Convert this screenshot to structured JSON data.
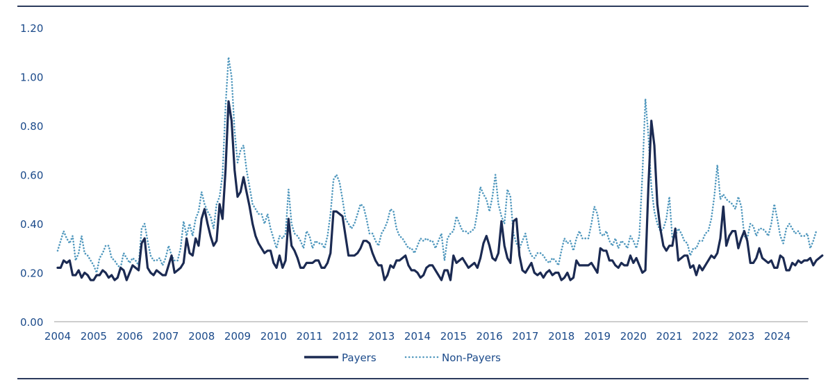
{
  "chart_data": {
    "type": "line",
    "title": "",
    "xlabel": "",
    "ylabel": "",
    "ylim": [
      0,
      1.2
    ],
    "xlim": [
      2004.0,
      2024.83
    ],
    "grid": false,
    "legend_position": "bottom-center",
    "y_ticks": [
      "0.00",
      "0.20",
      "0.40",
      "0.60",
      "0.80",
      "1.00",
      "1.20"
    ],
    "x_ticks": [
      "2004",
      "2005",
      "2006",
      "2007",
      "2008",
      "2009",
      "2010",
      "2011",
      "2012",
      "2013",
      "2014",
      "2015",
      "2016",
      "2017",
      "2018",
      "2019",
      "2020",
      "2021",
      "2022",
      "2023",
      "2024"
    ],
    "series": [
      {
        "name": "Payers",
        "style": "solid",
        "color": "#1b2a52",
        "start": "2004-01",
        "frequency": "monthly",
        "values": [
          0.22,
          0.22,
          0.25,
          0.24,
          0.25,
          0.19,
          0.19,
          0.21,
          0.18,
          0.2,
          0.19,
          0.17,
          0.17,
          0.19,
          0.19,
          0.21,
          0.2,
          0.18,
          0.19,
          0.17,
          0.18,
          0.22,
          0.21,
          0.17,
          0.2,
          0.23,
          0.22,
          0.21,
          0.32,
          0.34,
          0.22,
          0.2,
          0.19,
          0.21,
          0.2,
          0.19,
          0.19,
          0.23,
          0.27,
          0.2,
          0.21,
          0.22,
          0.24,
          0.34,
          0.28,
          0.27,
          0.34,
          0.31,
          0.42,
          0.46,
          0.4,
          0.35,
          0.31,
          0.33,
          0.48,
          0.42,
          0.62,
          0.9,
          0.82,
          0.62,
          0.51,
          0.53,
          0.59,
          0.53,
          0.47,
          0.4,
          0.35,
          0.32,
          0.3,
          0.28,
          0.29,
          0.29,
          0.24,
          0.22,
          0.27,
          0.22,
          0.25,
          0.42,
          0.31,
          0.29,
          0.26,
          0.22,
          0.22,
          0.24,
          0.24,
          0.24,
          0.25,
          0.25,
          0.22,
          0.22,
          0.24,
          0.28,
          0.45,
          0.45,
          0.44,
          0.43,
          0.35,
          0.27,
          0.27,
          0.27,
          0.28,
          0.3,
          0.33,
          0.33,
          0.32,
          0.28,
          0.25,
          0.23,
          0.23,
          0.17,
          0.19,
          0.23,
          0.22,
          0.25,
          0.25,
          0.26,
          0.27,
          0.23,
          0.21,
          0.21,
          0.2,
          0.18,
          0.19,
          0.22,
          0.23,
          0.23,
          0.21,
          0.19,
          0.17,
          0.21,
          0.21,
          0.17,
          0.27,
          0.24,
          0.25,
          0.26,
          0.24,
          0.22,
          0.23,
          0.24,
          0.22,
          0.26,
          0.32,
          0.35,
          0.31,
          0.26,
          0.25,
          0.28,
          0.41,
          0.31,
          0.26,
          0.24,
          0.41,
          0.42,
          0.27,
          0.21,
          0.2,
          0.22,
          0.24,
          0.2,
          0.19,
          0.2,
          0.18,
          0.2,
          0.21,
          0.19,
          0.2,
          0.2,
          0.17,
          0.18,
          0.2,
          0.17,
          0.18,
          0.25,
          0.23,
          0.23,
          0.23,
          0.23,
          0.24,
          0.22,
          0.2,
          0.3,
          0.29,
          0.29,
          0.25,
          0.25,
          0.23,
          0.22,
          0.24,
          0.23,
          0.23,
          0.27,
          0.24,
          0.26,
          0.23,
          0.2,
          0.21,
          0.55,
          0.82,
          0.72,
          0.48,
          0.38,
          0.31,
          0.29,
          0.31,
          0.31,
          0.38,
          0.25,
          0.26,
          0.27,
          0.27,
          0.22,
          0.23,
          0.19,
          0.23,
          0.21,
          0.23,
          0.25,
          0.27,
          0.26,
          0.28,
          0.34,
          0.47,
          0.31,
          0.35,
          0.37,
          0.37,
          0.3,
          0.34,
          0.37,
          0.33,
          0.24,
          0.24,
          0.26,
          0.3,
          0.26,
          0.25,
          0.24,
          0.25,
          0.22,
          0.22,
          0.27,
          0.26,
          0.21,
          0.21,
          0.24,
          0.23,
          0.25,
          0.24,
          0.25,
          0.25,
          0.26,
          0.23,
          0.25,
          0.26,
          0.27
        ]
      },
      {
        "name": "Non-Payers",
        "style": "dotted",
        "color": "#4f97bd",
        "start": "2004-01",
        "frequency": "monthly",
        "values": [
          0.29,
          0.33,
          0.37,
          0.34,
          0.32,
          0.35,
          0.25,
          0.28,
          0.35,
          0.28,
          0.27,
          0.25,
          0.23,
          0.2,
          0.26,
          0.28,
          0.31,
          0.31,
          0.26,
          0.25,
          0.23,
          0.22,
          0.28,
          0.26,
          0.24,
          0.26,
          0.25,
          0.23,
          0.38,
          0.4,
          0.33,
          0.27,
          0.25,
          0.25,
          0.26,
          0.23,
          0.26,
          0.31,
          0.27,
          0.25,
          0.25,
          0.3,
          0.41,
          0.35,
          0.4,
          0.35,
          0.42,
          0.45,
          0.53,
          0.48,
          0.45,
          0.43,
          0.38,
          0.48,
          0.51,
          0.6,
          0.88,
          1.08,
          1.0,
          0.78,
          0.65,
          0.7,
          0.72,
          0.62,
          0.55,
          0.48,
          0.46,
          0.44,
          0.44,
          0.4,
          0.44,
          0.38,
          0.34,
          0.3,
          0.35,
          0.34,
          0.36,
          0.54,
          0.4,
          0.36,
          0.35,
          0.33,
          0.3,
          0.37,
          0.35,
          0.3,
          0.33,
          0.32,
          0.32,
          0.3,
          0.35,
          0.44,
          0.58,
          0.6,
          0.57,
          0.5,
          0.42,
          0.4,
          0.38,
          0.4,
          0.44,
          0.48,
          0.47,
          0.42,
          0.36,
          0.36,
          0.33,
          0.31,
          0.36,
          0.38,
          0.41,
          0.46,
          0.45,
          0.38,
          0.35,
          0.34,
          0.32,
          0.3,
          0.3,
          0.28,
          0.31,
          0.34,
          0.33,
          0.34,
          0.33,
          0.33,
          0.3,
          0.33,
          0.36,
          0.25,
          0.34,
          0.36,
          0.37,
          0.43,
          0.4,
          0.37,
          0.37,
          0.36,
          0.37,
          0.38,
          0.45,
          0.55,
          0.52,
          0.5,
          0.45,
          0.51,
          0.6,
          0.48,
          0.43,
          0.4,
          0.54,
          0.51,
          0.36,
          0.32,
          0.3,
          0.33,
          0.36,
          0.3,
          0.27,
          0.26,
          0.28,
          0.28,
          0.27,
          0.25,
          0.24,
          0.26,
          0.25,
          0.23,
          0.29,
          0.34,
          0.32,
          0.33,
          0.29,
          0.34,
          0.37,
          0.34,
          0.34,
          0.34,
          0.4,
          0.47,
          0.44,
          0.36,
          0.35,
          0.37,
          0.33,
          0.31,
          0.34,
          0.3,
          0.33,
          0.32,
          0.3,
          0.35,
          0.33,
          0.3,
          0.35,
          0.6,
          0.91,
          0.76,
          0.55,
          0.45,
          0.4,
          0.37,
          0.38,
          0.42,
          0.51,
          0.34,
          0.35,
          0.38,
          0.36,
          0.33,
          0.32,
          0.27,
          0.3,
          0.3,
          0.33,
          0.33,
          0.36,
          0.37,
          0.42,
          0.51,
          0.64,
          0.5,
          0.52,
          0.5,
          0.49,
          0.48,
          0.46,
          0.51,
          0.47,
          0.35,
          0.34,
          0.4,
          0.39,
          0.35,
          0.38,
          0.38,
          0.37,
          0.35,
          0.4,
          0.48,
          0.42,
          0.35,
          0.32,
          0.38,
          0.4,
          0.38,
          0.36,
          0.37,
          0.35,
          0.35,
          0.36,
          0.3,
          0.33,
          0.37
        ]
      }
    ]
  }
}
